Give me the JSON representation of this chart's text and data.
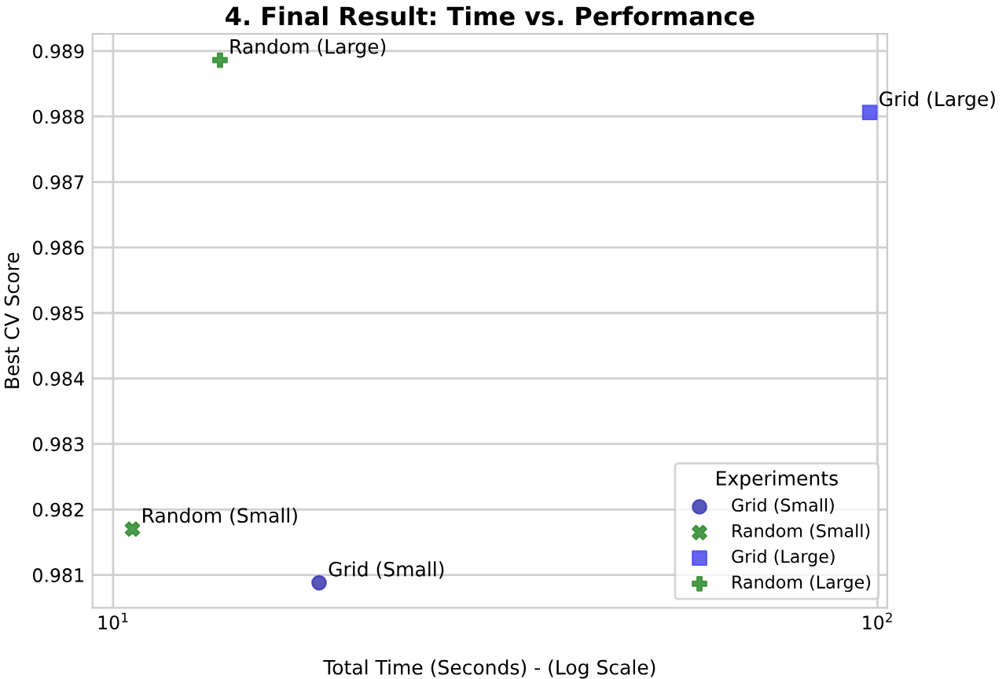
{
  "chart_data": {
    "type": "scatter",
    "title": "4. Final Result: Time vs. Performance",
    "xlabel": "Total Time (Seconds) - (Log Scale)",
    "ylabel": "Best CV Score",
    "legend_title": "Experiments",
    "series": [
      {
        "name": "Grid (Small)",
        "color": "#3a3ab0",
        "marker": "circle",
        "x": [
          18.6
        ],
        "values": [
          0.98088
        ]
      },
      {
        "name": "Random (Small)",
        "color": "#2e8b2e",
        "marker": "cross",
        "x": [
          10.6
        ],
        "values": [
          0.9817
        ]
      },
      {
        "name": "Grid (Large)",
        "color": "#4a4af0",
        "marker": "square",
        "x": [
          97.7
        ],
        "values": [
          0.98806
        ]
      },
      {
        "name": "Random (Large)",
        "color": "#2e8b2e",
        "marker": "plus",
        "x": [
          13.8
        ],
        "values": [
          0.98886
        ]
      }
    ],
    "log": "x",
    "xlim": [
      9.4,
      103
    ],
    "xticks": [
      {
        "value": 10,
        "label": "10$^{1}$"
      },
      {
        "value": 100,
        "label": "10$^{2}$"
      }
    ],
    "ylim": [
      0.9805,
      0.98926
    ],
    "yticks": [
      0.981,
      0.982,
      0.983,
      0.984,
      0.985,
      0.986,
      0.987,
      0.988,
      0.989
    ],
    "grid": true,
    "legend": "bottom right"
  }
}
